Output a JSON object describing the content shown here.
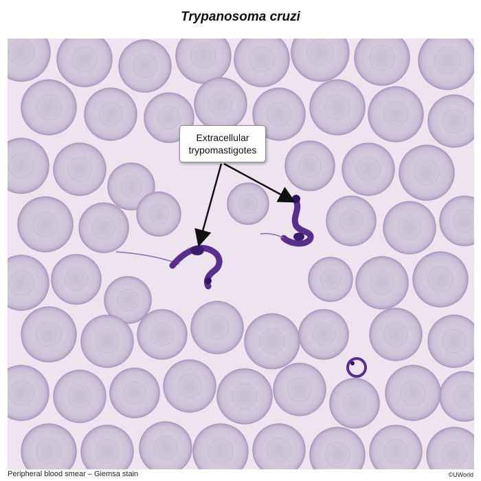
{
  "figure": {
    "title": "Trypanosoma cruzi",
    "callout_line1": "Extracellular",
    "callout_line2": "trypomastigotes",
    "caption": "Peripheral blood smear – Giemsa stain",
    "credit": "©UWorld"
  },
  "colors": {
    "background": "#ede4f0",
    "rbc_fill": "#cfc6d8",
    "rbc_center": "#c2b7cf",
    "rbc_edge": "#a999bd",
    "parasite": "#5a2e8c",
    "parasite_dark": "#2e1560",
    "arrow": "#111111"
  }
}
